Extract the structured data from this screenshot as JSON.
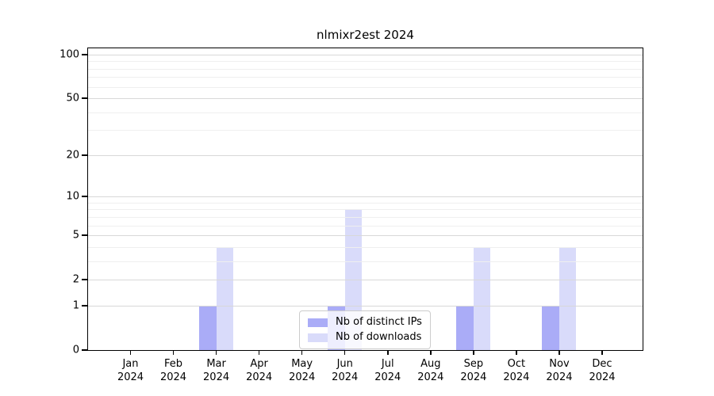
{
  "chart_data": {
    "type": "bar",
    "title": "nlmixr2est 2024",
    "year": "2024",
    "categories": [
      "Jan",
      "Feb",
      "Mar",
      "Apr",
      "May",
      "Jun",
      "Jul",
      "Aug",
      "Sep",
      "Oct",
      "Nov",
      "Dec"
    ],
    "series": [
      {
        "name": "Nb of distinct IPs",
        "color": "#aaacf7",
        "values": [
          0,
          0,
          1,
          0,
          0,
          1,
          0,
          0,
          1,
          0,
          1,
          0
        ]
      },
      {
        "name": "Nb of downloads",
        "color": "#d9dbfa",
        "values": [
          0,
          0,
          4,
          0,
          0,
          8,
          0,
          0,
          4,
          0,
          4,
          0
        ]
      }
    ],
    "y_scale": "log1p",
    "ylim": [
      0,
      100
    ],
    "y_major_ticks": [
      0,
      1,
      2,
      5,
      10,
      20,
      50,
      100
    ],
    "y_minor_ticks": [
      3,
      4,
      6,
      7,
      8,
      9,
      30,
      40,
      60,
      70,
      80,
      90
    ],
    "grid": true,
    "grid_major_color": "#d8d8d8",
    "grid_minor_color": "#efefef",
    "axis_color": "#000000",
    "legend_position": "bottom-center"
  }
}
